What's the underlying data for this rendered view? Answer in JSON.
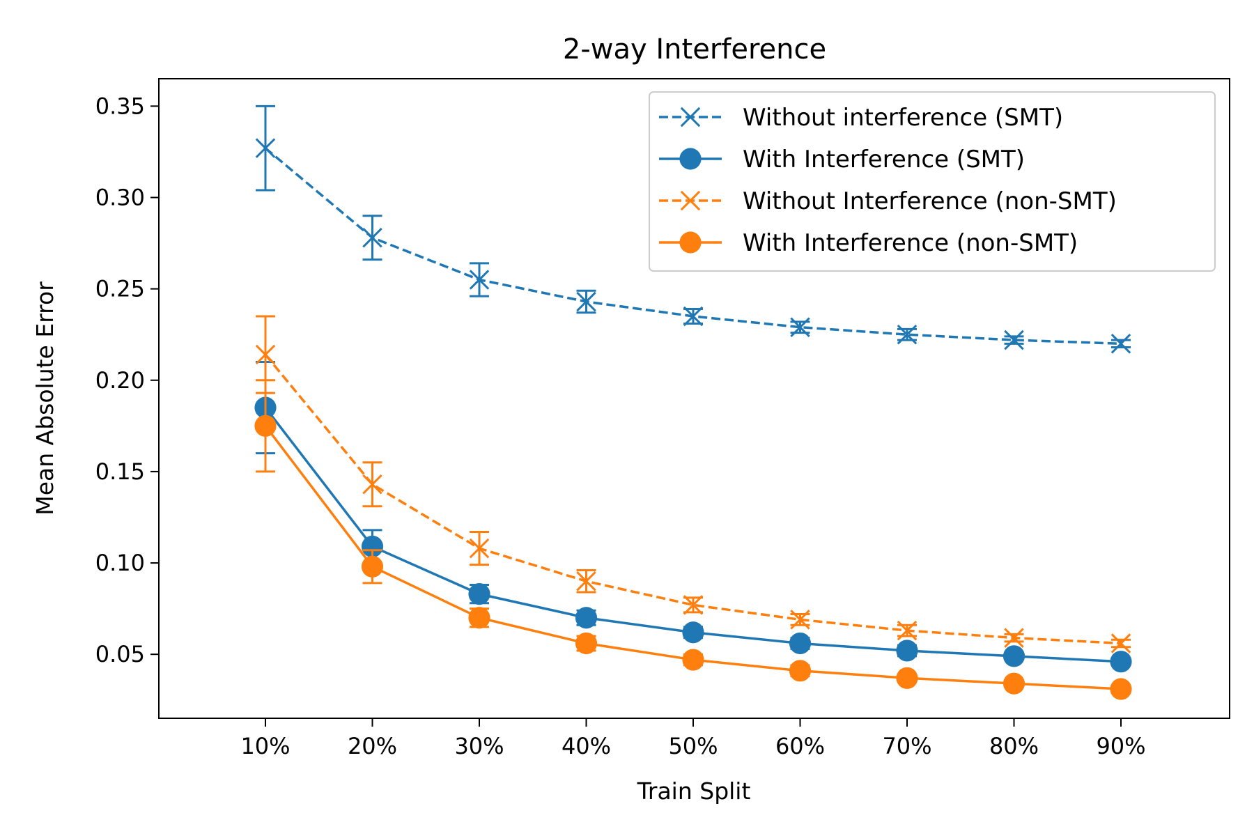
{
  "chart_data": {
    "type": "line",
    "title": "2-way Interference",
    "xlabel": "Train Split",
    "ylabel": "Mean Absolute Error",
    "categories": [
      "10%",
      "20%",
      "30%",
      "40%",
      "50%",
      "60%",
      "70%",
      "80%",
      "90%"
    ],
    "ylim": [
      0.015,
      0.365
    ],
    "yticks": [
      0.05,
      0.1,
      0.15,
      0.2,
      0.25,
      0.3,
      0.35
    ],
    "ytick_labels": [
      "0.05",
      "0.10",
      "0.15",
      "0.20",
      "0.25",
      "0.30",
      "0.35"
    ],
    "grid": false,
    "legend_position": "top-right",
    "series": [
      {
        "name": "Without interference (SMT)",
        "color": "#1f77b4",
        "linestyle": "dashed",
        "marker": "x",
        "values": [
          0.327,
          0.278,
          0.255,
          0.243,
          0.235,
          0.229,
          0.225,
          0.222,
          0.22
        ],
        "errors": [
          0.023,
          0.012,
          0.009,
          0.006,
          0.004,
          0.003,
          0.003,
          0.002,
          0.002
        ]
      },
      {
        "name": "With Interference (SMT)",
        "color": "#1f77b4",
        "linestyle": "solid",
        "marker": "o",
        "values": [
          0.185,
          0.109,
          0.083,
          0.07,
          0.062,
          0.056,
          0.052,
          0.049,
          0.046
        ],
        "errors": [
          0.025,
          0.009,
          0.005,
          0.004,
          0.003,
          0.003,
          0.003,
          0.002,
          0.002
        ]
      },
      {
        "name": "Without Interference (non-SMT)",
        "color": "#ff7f0e",
        "linestyle": "dashed",
        "marker": "x",
        "values": [
          0.214,
          0.143,
          0.108,
          0.09,
          0.077,
          0.069,
          0.063,
          0.059,
          0.056
        ],
        "errors": [
          0.021,
          0.012,
          0.009,
          0.006,
          0.004,
          0.003,
          0.003,
          0.002,
          0.002
        ]
      },
      {
        "name": "With Interference (non-SMT)",
        "color": "#ff7f0e",
        "linestyle": "solid",
        "marker": "o",
        "values": [
          0.175,
          0.098,
          0.07,
          0.056,
          0.047,
          0.041,
          0.037,
          0.034,
          0.031
        ],
        "errors": [
          0.025,
          0.009,
          0.005,
          0.004,
          0.003,
          0.003,
          0.002,
          0.002,
          0.002
        ]
      }
    ]
  }
}
